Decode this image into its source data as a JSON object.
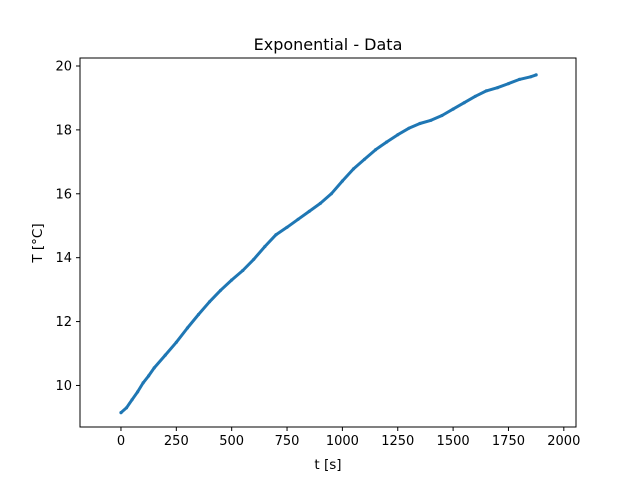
{
  "chart_data": {
    "type": "scatter",
    "title": "Exponential - Data",
    "xlabel": "t [s]",
    "ylabel": "T [°C]",
    "xlim": [
      -185,
      2055
    ],
    "ylim": [
      8.7,
      20.25
    ],
    "xticks": [
      0,
      250,
      500,
      750,
      1000,
      1250,
      1500,
      1750,
      2000
    ],
    "yticks": [
      10,
      12,
      14,
      16,
      18,
      20
    ],
    "grid": false,
    "color": "#1f77b4",
    "series": [
      {
        "x": [
          0,
          25,
          50,
          75,
          100,
          125,
          150,
          200,
          250,
          300,
          350,
          400,
          450,
          500,
          550,
          600,
          650,
          700,
          750,
          800,
          850,
          900,
          950,
          1000,
          1050,
          1100,
          1150,
          1200,
          1250,
          1300,
          1350,
          1400,
          1450,
          1500,
          1550,
          1600,
          1650,
          1700,
          1750,
          1800,
          1850,
          1875
        ],
        "y": [
          9.15,
          9.3,
          9.55,
          9.8,
          10.08,
          10.3,
          10.55,
          10.95,
          11.35,
          11.8,
          12.22,
          12.62,
          12.98,
          13.3,
          13.6,
          13.95,
          14.35,
          14.72,
          14.95,
          15.2,
          15.45,
          15.7,
          16.0,
          16.4,
          16.78,
          17.08,
          17.38,
          17.62,
          17.85,
          18.05,
          18.2,
          18.3,
          18.45,
          18.65,
          18.85,
          19.05,
          19.22,
          19.32,
          19.45,
          19.58,
          19.66,
          19.72
        ]
      }
    ]
  }
}
